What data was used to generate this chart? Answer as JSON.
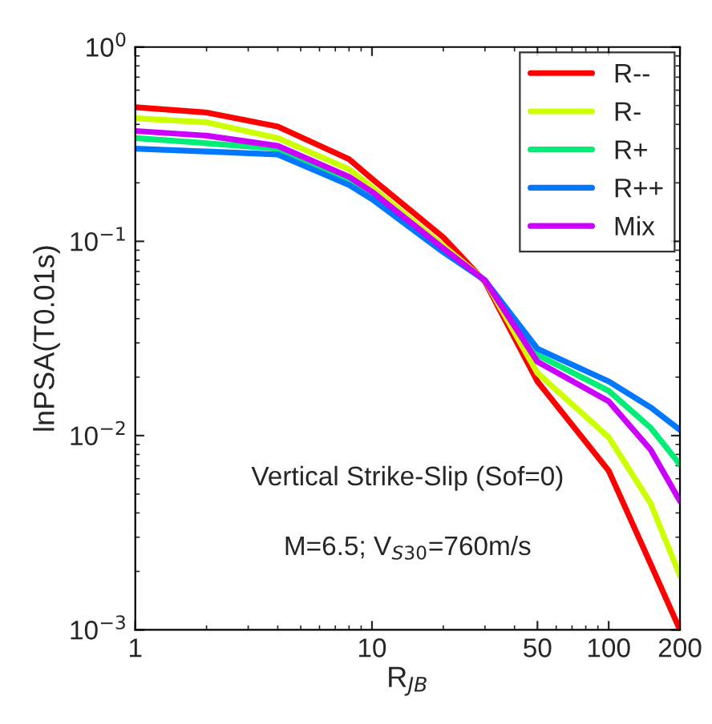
{
  "chart_data": {
    "type": "line",
    "xlabel": "R$_{JB}$",
    "ylabel": "lnPSA(T0.01s)",
    "x": [
      1,
      2,
      4,
      8,
      10,
      20,
      30,
      50,
      100,
      150,
      200
    ],
    "series": [
      {
        "name": "R--",
        "color": "#ff0000",
        "values": [
          0.49,
          0.46,
          0.39,
          0.265,
          0.21,
          0.105,
          0.062,
          0.019,
          0.0066,
          0.0022,
          0.001
        ]
      },
      {
        "name": "R-",
        "color": "#ccff00",
        "values": [
          0.43,
          0.41,
          0.34,
          0.235,
          0.19,
          0.095,
          0.063,
          0.021,
          0.0098,
          0.0045,
          0.0019
        ]
      },
      {
        "name": "R+",
        "color": "#00ee77",
        "values": [
          0.34,
          0.32,
          0.3,
          0.205,
          0.17,
          0.09,
          0.063,
          0.026,
          0.017,
          0.011,
          0.0071
        ]
      },
      {
        "name": "R++",
        "color": "#0077ff",
        "values": [
          0.3,
          0.29,
          0.28,
          0.195,
          0.165,
          0.088,
          0.063,
          0.028,
          0.019,
          0.014,
          0.0107
        ]
      },
      {
        "name": "Mix",
        "color": "#cc00ff",
        "values": [
          0.37,
          0.35,
          0.31,
          0.215,
          0.18,
          0.092,
          0.063,
          0.024,
          0.015,
          0.0085,
          0.0046
        ]
      }
    ],
    "log": "xy",
    "xlim": [
      1,
      200
    ],
    "ylim": [
      0.001,
      1
    ],
    "xticks": [
      1,
      10,
      50,
      100,
      200
    ],
    "yticks": [
      {
        "value": 0.001,
        "label": "10$^{−3}$"
      },
      {
        "value": 0.01,
        "label": "10$^{−2}$"
      },
      {
        "value": 0.1,
        "label": "10$^{−1}$"
      },
      {
        "value": 1,
        "label": "10$^{0}$"
      }
    ],
    "annotations": [
      "Vertical Strike-Slip (Sof=0)",
      "M=6.5; V$_{S30}$=760m/s"
    ],
    "legend": "top right",
    "grid": false,
    "line_style": "solid",
    "marker": "none"
  }
}
